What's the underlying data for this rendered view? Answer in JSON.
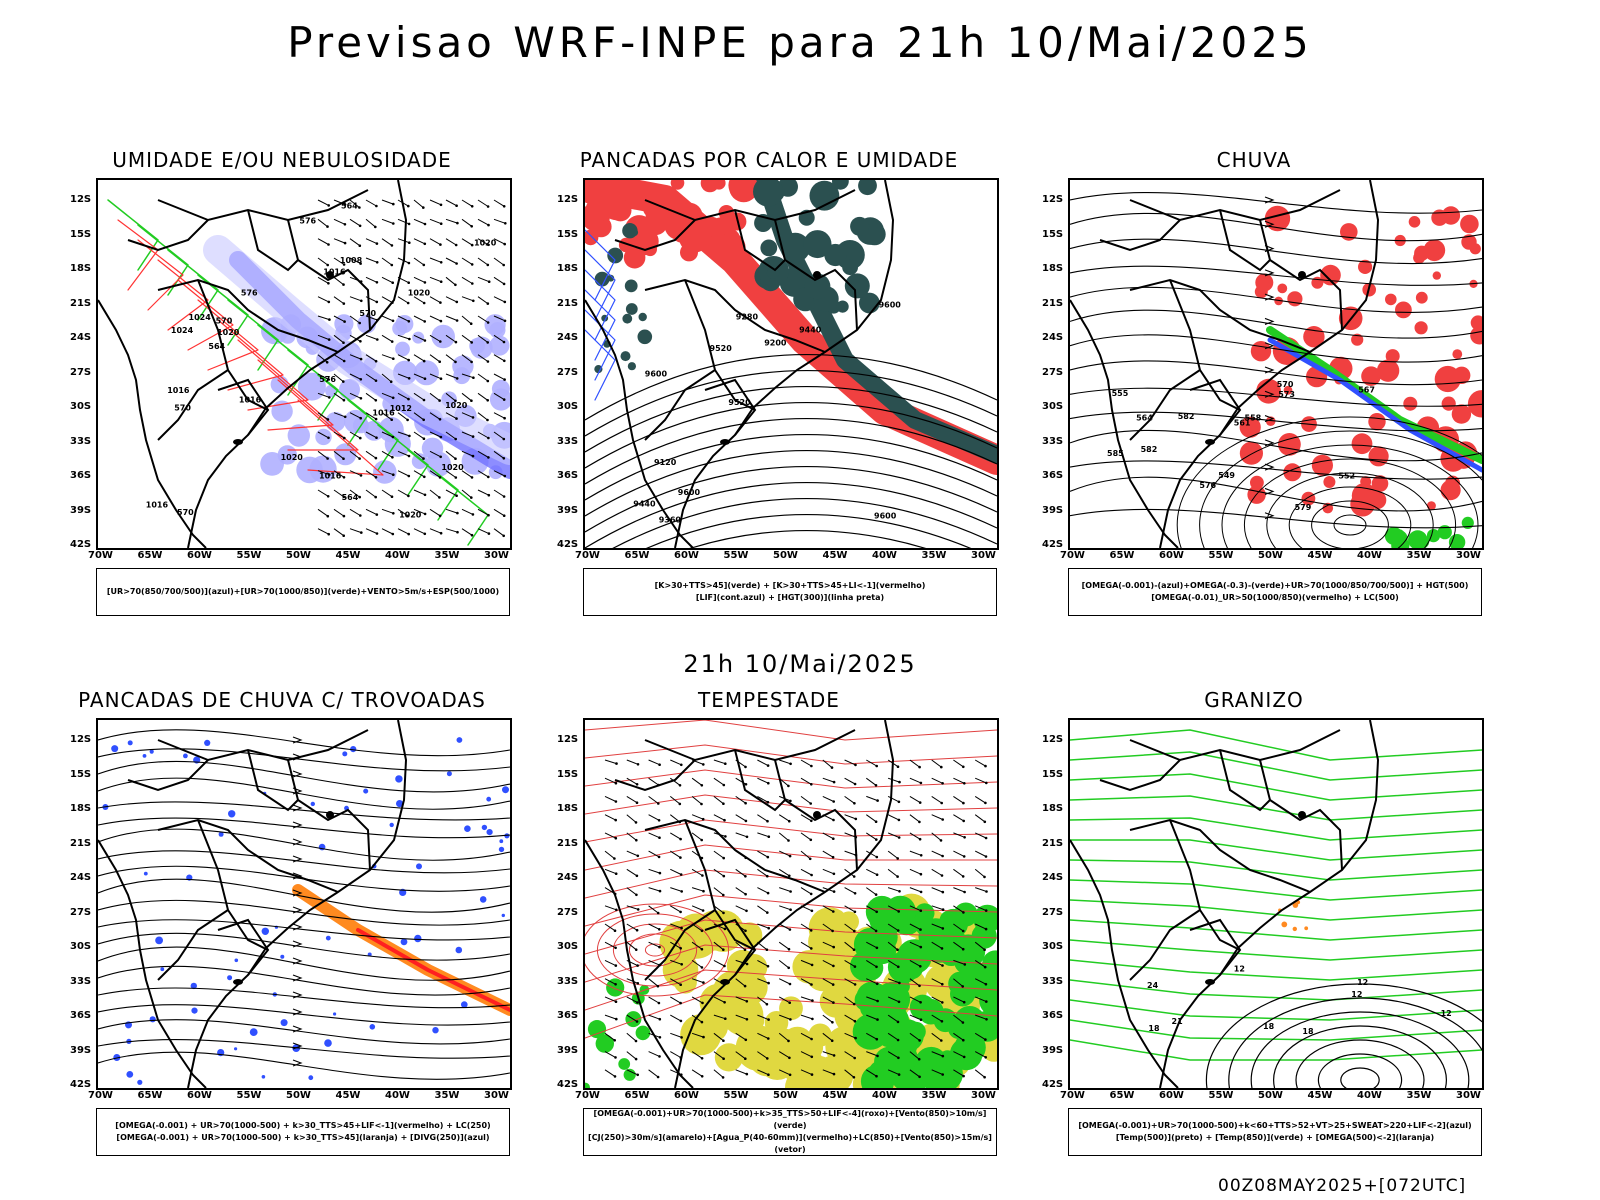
{
  "header": {
    "title": "Previsao WRF-INPE  para 21h 10/Mai/2025",
    "mid_title": "21h 10/Mai/2025",
    "footer": "00Z08MAY2025+[072UTC]"
  },
  "axes": {
    "lat_labels": [
      "12S",
      "15S",
      "18S",
      "21S",
      "24S",
      "27S",
      "30S",
      "33S",
      "36S",
      "39S",
      "42S"
    ],
    "lon_labels": [
      "70W",
      "65W",
      "60W",
      "55W",
      "50W",
      "45W",
      "40W",
      "35W",
      "30W"
    ]
  },
  "panels": [
    {
      "id": "umidade",
      "title": "UMIDADE E/OU NEBULOSIDADE",
      "legend": [
        "[UR>70(850/700/500)](azul)+[UR>70(1000/850)](verde)+VENTO>5m/s+ESP(500/1000)"
      ],
      "contour_labels": [
        "1016",
        "1016",
        "1016",
        "1016",
        "1024",
        "1020",
        "1020",
        "1020",
        "1016",
        "1020",
        "1024",
        "1020",
        "1020",
        "1020",
        "1016",
        "1012",
        "1008",
        "570",
        "570",
        "576",
        "576",
        "576",
        "570",
        "564",
        "564",
        "564",
        "570"
      ]
    },
    {
      "id": "pancadas_calor",
      "title": "PANCADAS POR CALOR E UMIDADE",
      "legend": [
        "[K>30+TTS>45](verde) + [K>30+TTS>45+LI<-1](vermelho)",
        "[LIF](cont.azul) + [HGT(300)](linha preta)"
      ],
      "contour_labels": [
        "9600",
        "9600",
        "9600",
        "9520",
        "9440",
        "9360",
        "9280",
        "9200",
        "9120",
        "9520",
        "9440",
        "9600"
      ]
    },
    {
      "id": "chuva",
      "title": "CHUVA",
      "legend": [
        "[OMEGA(-0.001)-(azul)+OMEGA(-0.3)-(verde)+UR>70(1000/850/700/500)] + HGT(500)",
        "[OMEGA(-0.01)_UR>50(1000/850)(vermelho) + LC(500)"
      ],
      "contour_labels": [
        "582",
        "585",
        "576",
        "573",
        "570",
        "567",
        "564",
        "561",
        "558",
        "555",
        "552",
        "549",
        "579",
        "582"
      ]
    },
    {
      "id": "pancadas_trovoadas",
      "title": "PANCADAS DE CHUVA C/ TROVOADAS",
      "legend": [
        "[OMEGA(-0.001) + UR>70(1000-500) + k>30_TTS>45+LIF<-1](vermelho) + LC(250)",
        "[OMEGA(-0.001) + UR>70(1000-500) + k>30_TTS>45](laranja) + [DIVG(250)](azul)"
      ]
    },
    {
      "id": "tempestade",
      "title": "TEMPESTADE",
      "legend": [
        "[OMEGA(-0.001)+UR>70(1000-500)+k>35_TTS>50+LIF<-4](roxo)+[Vento(850)>10m/s](verde)",
        "[CJ(250)>30m/s](amarelo)+[Agua_P(40-60mm)](vermelho)+LC(850)+[Vento(850)>15m/s](vetor)"
      ]
    },
    {
      "id": "granizo",
      "title": "GRANIZO",
      "legend": [
        "[OMEGA(-0.001)+UR>70(1000-500)+k<60+TTS>52+VT>25+SWEAT>220+LIF<-2](azul)",
        "[Temp(500)](preto) + [Temp(850)](verde) + [OMEGA(500)<-2](laranja)"
      ],
      "contour_labels": [
        "12",
        "12",
        "12",
        "18",
        "18",
        "21",
        "24",
        "12",
        "18"
      ]
    }
  ]
}
